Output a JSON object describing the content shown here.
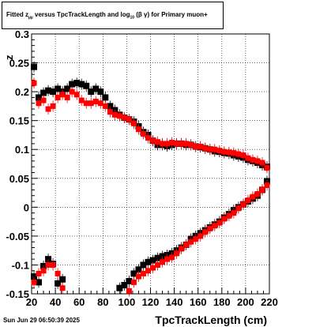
{
  "title": {
    "prefix": "Fitted  z",
    "sub": "µµ",
    "middle": "  versus TpcTrackLength and log",
    "sub2": "10",
    "suffix": " (β   γ) for Primary muon+"
  },
  "datestamp": "Sun Jun 29 06:50:39 2025",
  "chart_data": {
    "type": "scatter",
    "title": "Fitted z versus TpcTrackLength and log10(beta gamma) for Primary muon+",
    "xlabel": "TpcTrackLength (cm)",
    "ylabel": "z",
    "xlim": [
      20,
      220
    ],
    "ylim": [
      -0.15,
      0.3
    ],
    "grid": true,
    "xticks": [
      20,
      40,
      60,
      80,
      100,
      120,
      140,
      160,
      180,
      200,
      220
    ],
    "yticks": [
      -0.15,
      -0.1,
      -0.05,
      0,
      0.05,
      0.1,
      0.15,
      0.2,
      0.25,
      0.3
    ],
    "ytick_labels": [
      "-0.15",
      "-0.1",
      "-0.05",
      "0",
      "0.05",
      "0.1",
      "0.15",
      "0.2",
      "0.25",
      "0.3"
    ],
    "series": [
      {
        "color": "#000000",
        "x": [
          22,
          26,
          30,
          34,
          38,
          42,
          46,
          50,
          54,
          58,
          62,
          66,
          70,
          74,
          78,
          82,
          86,
          90,
          94,
          98,
          102,
          106,
          110,
          114,
          118,
          122,
          126,
          130,
          134,
          138,
          142,
          146,
          150,
          154,
          158,
          162,
          166,
          170,
          174,
          178,
          182,
          186,
          190,
          194,
          198,
          202,
          206,
          210,
          214,
          218
        ],
        "y": [
          0.243,
          0.19,
          0.198,
          0.202,
          0.2,
          0.205,
          0.2,
          0.205,
          0.213,
          0.215,
          0.213,
          0.21,
          0.2,
          0.205,
          0.2,
          0.19,
          0.175,
          0.168,
          0.16,
          0.155,
          0.152,
          0.148,
          0.14,
          0.13,
          0.125,
          0.115,
          0.108,
          0.108,
          0.106,
          0.108,
          0.11,
          0.11,
          0.108,
          0.108,
          0.105,
          0.104,
          0.102,
          0.1,
          0.097,
          0.096,
          0.094,
          0.093,
          0.09,
          0.088,
          0.086,
          0.082,
          0.08,
          0.077,
          0.073,
          0.07
        ]
      },
      {
        "color": "#ff0000",
        "x": [
          22,
          26,
          30,
          34,
          38,
          42,
          46,
          50,
          54,
          58,
          62,
          66,
          70,
          74,
          78,
          82,
          86,
          90,
          94,
          98,
          102,
          106,
          110,
          114,
          118,
          122,
          126,
          130,
          134,
          138,
          142,
          146,
          150,
          154,
          158,
          162,
          166,
          170,
          174,
          178,
          182,
          186,
          190,
          194,
          198,
          202,
          206,
          210,
          214,
          218
        ],
        "y": [
          0.215,
          0.18,
          0.185,
          0.17,
          0.175,
          0.19,
          0.195,
          0.19,
          0.2,
          0.195,
          0.185,
          0.18,
          0.18,
          0.183,
          0.18,
          0.175,
          0.165,
          0.16,
          0.158,
          0.155,
          0.152,
          0.145,
          0.135,
          0.127,
          0.12,
          0.115,
          0.113,
          0.11,
          0.11,
          0.112,
          0.11,
          0.11,
          0.11,
          0.108,
          0.105,
          0.105,
          0.102,
          0.1,
          0.1,
          0.098,
          0.096,
          0.095,
          0.094,
          0.092,
          0.09,
          0.085,
          0.082,
          0.08,
          0.077,
          0.068
        ]
      },
      {
        "color": "#000000",
        "x": [
          22,
          26,
          30,
          34,
          38,
          42,
          46,
          94,
          98,
          102,
          106,
          110,
          114,
          118,
          122,
          126,
          130,
          134,
          138,
          142,
          146,
          150,
          154,
          158,
          162,
          166,
          170,
          174,
          178,
          182,
          186,
          190,
          194,
          198,
          202,
          206,
          210,
          214,
          218
        ],
        "y": [
          -0.12,
          -0.13,
          -0.102,
          -0.09,
          -0.098,
          -0.132,
          -0.125,
          -0.14,
          -0.135,
          -0.128,
          -0.115,
          -0.108,
          -0.1,
          -0.095,
          -0.092,
          -0.088,
          -0.085,
          -0.083,
          -0.08,
          -0.075,
          -0.07,
          -0.065,
          -0.055,
          -0.05,
          -0.045,
          -0.04,
          -0.035,
          -0.03,
          -0.025,
          -0.018,
          -0.012,
          -0.005,
          0.0,
          0.005,
          0.01,
          0.015,
          0.02,
          0.03,
          0.045
        ]
      },
      {
        "color": "#ff0000",
        "x": [
          22,
          26,
          30,
          34,
          38,
          42,
          46,
          102,
          106,
          110,
          114,
          118,
          122,
          126,
          130,
          134,
          138,
          142,
          146,
          150,
          154,
          158,
          162,
          166,
          170,
          174,
          178,
          182,
          186,
          190,
          194,
          198,
          202,
          206,
          210,
          214,
          218
        ],
        "y": [
          -0.13,
          -0.115,
          -0.11,
          -0.1,
          -0.1,
          -0.115,
          -0.14,
          -0.145,
          -0.13,
          -0.12,
          -0.115,
          -0.11,
          -0.105,
          -0.1,
          -0.095,
          -0.09,
          -0.087,
          -0.08,
          -0.072,
          -0.065,
          -0.06,
          -0.055,
          -0.05,
          -0.043,
          -0.037,
          -0.032,
          -0.027,
          -0.02,
          -0.015,
          -0.01,
          -0.002,
          0.005,
          0.012,
          0.018,
          0.023,
          0.03,
          0.038
        ]
      }
    ]
  }
}
